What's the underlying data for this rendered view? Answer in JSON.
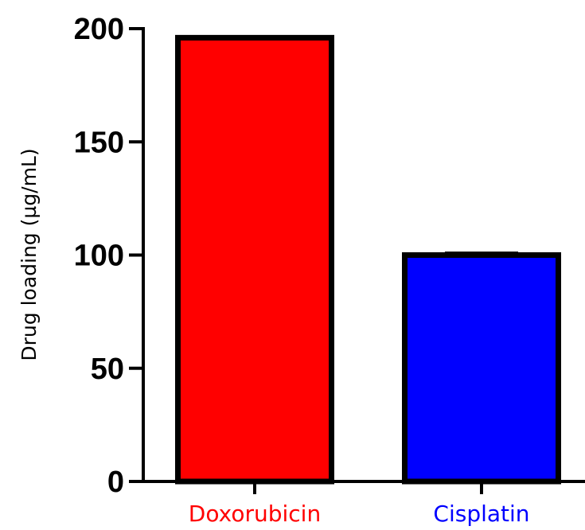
{
  "chart_data": {
    "type": "bar",
    "categories": [
      "Doxorubicin",
      "Cisplatin"
    ],
    "values": [
      196,
      100
    ],
    "error": [
      0,
      0.5
    ],
    "bar_colors": [
      "#ff0000",
      "#0000ff"
    ],
    "category_label_colors": [
      "#ff0000",
      "#0000ff"
    ],
    "ylabel": "Drug loading (µg/mL)",
    "ylim": [
      0,
      200
    ],
    "yticks": [
      0,
      50,
      100,
      150,
      200
    ],
    "grid": false
  }
}
